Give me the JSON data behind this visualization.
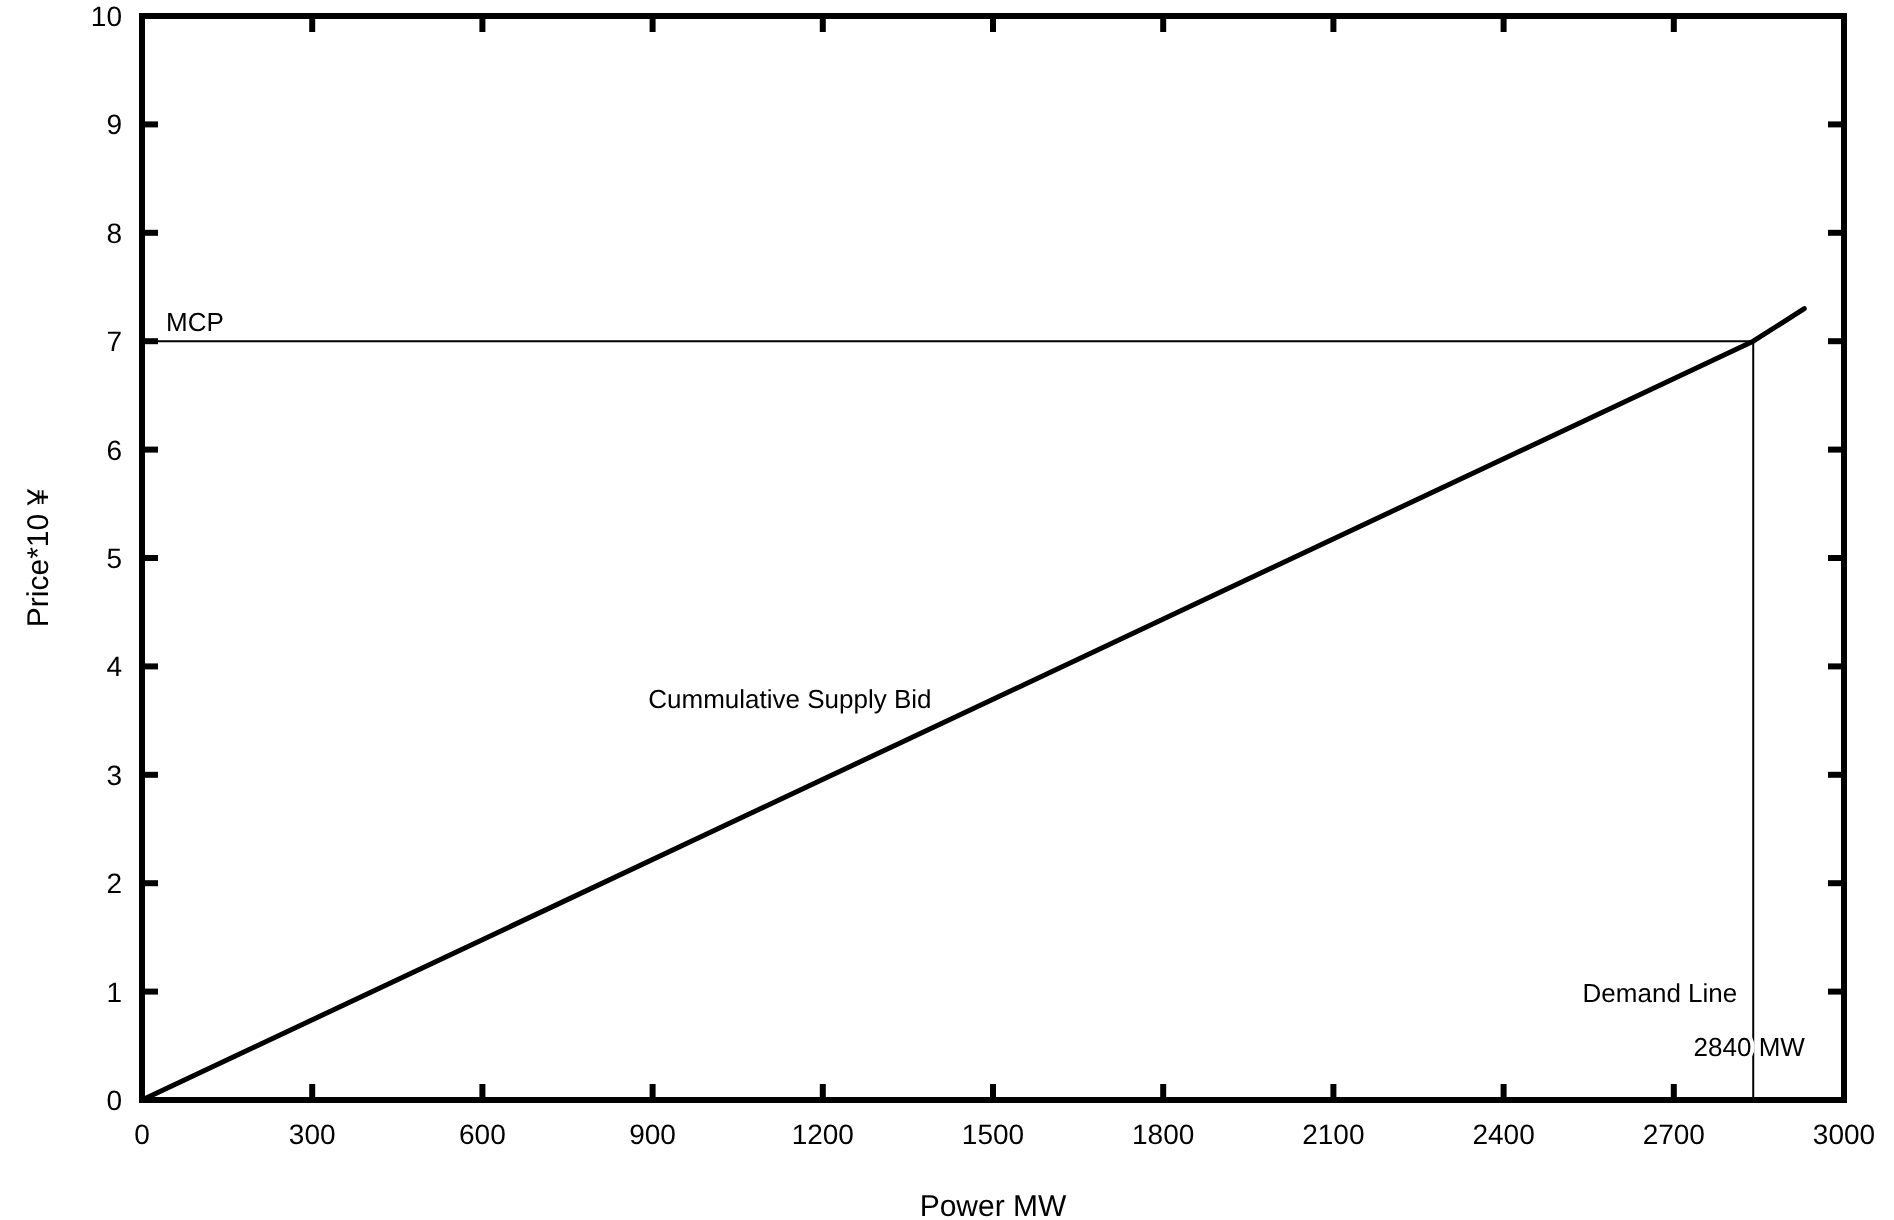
{
  "chart_data": {
    "type": "line",
    "xlabel": "Power MW",
    "ylabel": "Price*10 ¥",
    "xlim": [
      0,
      3000
    ],
    "ylim": [
      0,
      10
    ],
    "xticks": [
      0,
      300,
      600,
      900,
      1200,
      1500,
      1800,
      2100,
      2400,
      2700,
      3000
    ],
    "yticks": [
      0,
      1,
      2,
      3,
      4,
      5,
      6,
      7,
      8,
      9,
      10
    ],
    "series": [
      {
        "name": "Cummulative Supply Bid",
        "color": "#000000",
        "x": [
          0,
          2840,
          2930
        ],
        "values": [
          0,
          7,
          7.3
        ]
      }
    ],
    "ref_lines": [
      {
        "axis": "y",
        "value": 7,
        "label": "MCP"
      },
      {
        "axis": "x",
        "value": 2840,
        "label": "Demand Line"
      }
    ],
    "annotations": [
      {
        "text": "2840 MW",
        "x": 2840,
        "y": 0.5
      }
    ],
    "grid": false,
    "legend": false,
    "marker": "none",
    "line_style": "solid"
  }
}
